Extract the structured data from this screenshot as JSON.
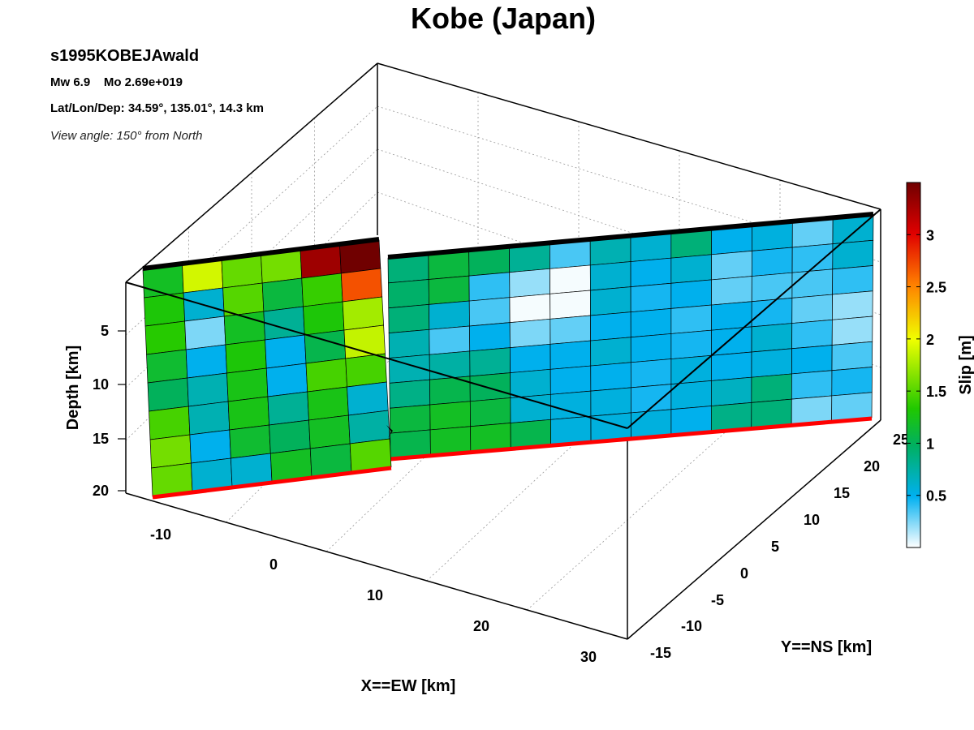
{
  "chart_data": {
    "type": "heatmap",
    "title": "Kobe (Japan)",
    "event_id": "s1995KOBEJAwald",
    "magnitude_line": "Mw 6.9    Mo 2.69e+019",
    "location_line": "Lat/Lon/Dep: 34.59°, 135.01°, 14.3 km",
    "view_line": "View angle: 150° from North",
    "xlabel": "X==EW [km]",
    "ylabel": "Y==NS [km]",
    "zlabel": "Depth [km]",
    "colorbar_label": "Slip [m]",
    "x_ticks": [
      "-10",
      "0",
      "10",
      "20",
      "30"
    ],
    "y_ticks": [
      "-15",
      "-10",
      "-5",
      "0",
      "5",
      "10",
      "15",
      "20",
      "25"
    ],
    "z_ticks": [
      "5",
      "10",
      "15",
      "20"
    ],
    "colorbar_ticks": [
      "0.5",
      "1",
      "1.5",
      "2",
      "2.5",
      "3"
    ],
    "xlim": [
      -15,
      32
    ],
    "ylim": [
      -15,
      27
    ],
    "zlim": [
      0,
      20
    ],
    "slip_range": [
      0,
      3.5
    ],
    "grid": true,
    "colormap": "white-blue-green-yellow-red-darkred",
    "segments": [
      {
        "name": "",
        "slip": [
          [
            1.2,
            1.9,
            1.55,
            1.6,
            3.3,
            3.5
          ],
          [
            1.3,
            0.6,
            1.5,
            1.1,
            1.4,
            2.7
          ],
          [
            1.35,
            0.25,
            1.2,
            0.8,
            1.3,
            1.75
          ],
          [
            1.15,
            0.5,
            1.3,
            0.5,
            1.05,
            1.85
          ],
          [
            1.0,
            0.7,
            1.25,
            0.5,
            1.45,
            1.45
          ],
          [
            1.45,
            0.7,
            1.25,
            0.8,
            1.25,
            0.6
          ],
          [
            1.6,
            0.5,
            1.15,
            1.0,
            1.2,
            0.75
          ],
          [
            1.55,
            0.6,
            0.6,
            1.2,
            1.1,
            1.5
          ]
        ]
      },
      {
        "name": "",
        "slip": [
          [
            0.9,
            1.1,
            1.0,
            0.8,
            0.35,
            0.7,
            0.6,
            0.9,
            0.5,
            0.55,
            0.3,
            0.6
          ],
          [
            0.95,
            1.1,
            0.4,
            0.2,
            0.02,
            0.6,
            0.5,
            0.6,
            0.3,
            0.45,
            0.4,
            0.6
          ],
          [
            0.9,
            0.6,
            0.35,
            0.02,
            0.02,
            0.6,
            0.45,
            0.5,
            0.3,
            0.35,
            0.35,
            0.4
          ],
          [
            0.7,
            0.35,
            0.5,
            0.25,
            0.3,
            0.5,
            0.5,
            0.4,
            0.5,
            0.45,
            0.3,
            0.2
          ],
          [
            0.7,
            0.75,
            0.8,
            0.5,
            0.5,
            0.6,
            0.5,
            0.45,
            0.5,
            0.6,
            0.4,
            0.2
          ],
          [
            0.85,
            1.05,
            1.0,
            0.6,
            0.5,
            0.5,
            0.45,
            0.55,
            0.5,
            0.55,
            0.5,
            0.35
          ],
          [
            1.1,
            1.2,
            1.1,
            0.6,
            0.55,
            0.55,
            0.45,
            0.55,
            0.65,
            0.9,
            0.4,
            0.45
          ],
          [
            1.05,
            1.2,
            1.2,
            1.05,
            0.55,
            0.55,
            0.55,
            0.5,
            0.85,
            0.9,
            0.25,
            0.3
          ]
        ]
      }
    ]
  }
}
